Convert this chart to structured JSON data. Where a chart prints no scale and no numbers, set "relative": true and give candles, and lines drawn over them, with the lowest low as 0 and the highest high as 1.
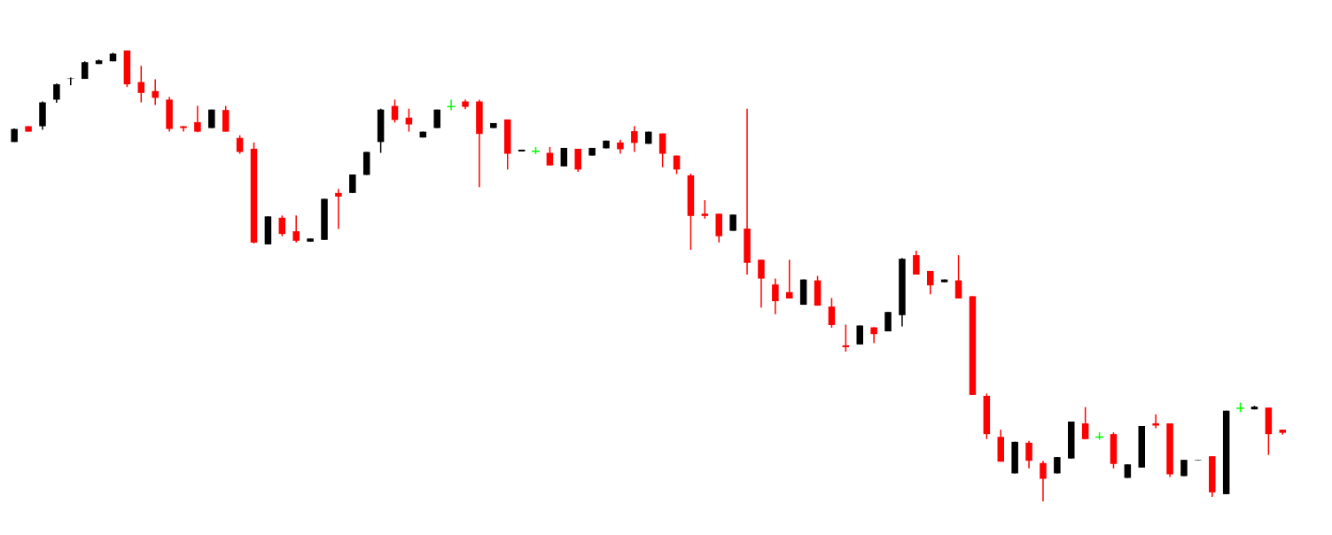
{
  "chart_data": {
    "type": "candlestick",
    "relative": true,
    "categories": [
      null,
      null,
      null,
      null,
      null,
      null,
      null,
      null,
      null,
      null,
      null,
      null,
      null,
      null,
      null,
      null,
      null,
      null,
      null,
      null,
      null,
      null,
      null,
      null,
      null,
      null,
      null,
      null,
      null,
      null,
      null,
      null,
      null,
      null,
      null,
      null,
      null,
      null,
      null,
      null,
      null,
      null,
      null,
      null,
      null,
      null,
      null,
      null,
      null,
      null,
      null,
      null,
      null,
      null,
      null,
      null,
      null,
      null,
      null,
      null,
      null,
      null,
      null,
      null,
      null,
      null,
      null,
      null,
      null,
      null,
      null,
      null,
      null,
      null,
      null,
      null,
      null,
      null,
      null,
      null,
      null,
      null,
      null,
      null,
      null,
      null,
      null,
      null,
      null,
      null,
      null
    ],
    "ohlc": [
      [
        0.797,
        0.827,
        0.797,
        0.826
      ],
      [
        0.832,
        0.832,
        0.82,
        0.82
      ],
      [
        0.832,
        0.887,
        0.824,
        0.885
      ],
      [
        0.891,
        0.927,
        0.884,
        0.925
      ],
      [
        0.937,
        0.94,
        0.923,
        0.938
      ],
      [
        0.937,
        0.976,
        0.937,
        0.974
      ],
      [
        0.97,
        0.98,
        0.97,
        0.978
      ],
      [
        0.976,
        0.995,
        0.976,
        0.993
      ],
      [
        1,
        1,
        0.919,
        0.925
      ],
      [
        0.93,
        0.966,
        0.885,
        0.906
      ],
      [
        0.91,
        0.936,
        0.879,
        0.895
      ],
      [
        0.891,
        0.897,
        0.82,
        0.826
      ],
      [
        0.832,
        0.832,
        0.82,
        0.828
      ],
      [
        0.841,
        0.877,
        0.819,
        0.82
      ],
      [
        0.828,
        0.869,
        0.828,
        0.869
      ],
      [
        0.868,
        0.877,
        0.82,
        0.82
      ],
      [
        0.806,
        0.812,
        0.771,
        0.775
      ],
      [
        0.782,
        0.796,
        0.572,
        0.574
      ],
      [
        0.57,
        0.632,
        0.57,
        0.632
      ],
      [
        0.629,
        0.634,
        0.588,
        0.593
      ],
      [
        0.599,
        0.634,
        0.574,
        0.578
      ],
      [
        0.576,
        0.583,
        0.576,
        0.583
      ],
      [
        0.58,
        0.671,
        0.58,
        0.671
      ],
      [
        0.684,
        0.693,
        0.604,
        0.676
      ],
      [
        0.684,
        0.725,
        0.684,
        0.725
      ],
      [
        0.724,
        0.775,
        0.724,
        0.775
      ],
      [
        0.797,
        0.871,
        0.773,
        0.869
      ],
      [
        0.877,
        0.891,
        0.84,
        0.846
      ],
      [
        0.851,
        0.871,
        0.82,
        0.836
      ],
      [
        0.807,
        0.82,
        0.807,
        0.82
      ],
      [
        0.828,
        0.869,
        0.828,
        0.869
      ],
      [
        0.877,
        0.891,
        0.868,
        0.877
      ],
      [
        0.887,
        0.891,
        0.87,
        0.875
      ],
      [
        0.887,
        0.891,
        0.697,
        0.815
      ],
      [
        0.828,
        0.839,
        0.828,
        0.839
      ],
      [
        0.847,
        0.847,
        0.736,
        0.771
      ],
      [
        0.776,
        0.78,
        0.776,
        0.78
      ],
      [
        0.778,
        0.786,
        0.77,
        0.778
      ],
      [
        0.773,
        0.786,
        0.745,
        0.745
      ],
      [
        0.743,
        0.784,
        0.743,
        0.784
      ],
      [
        0.782,
        0.782,
        0.731,
        0.736
      ],
      [
        0.767,
        0.784,
        0.767,
        0.784
      ],
      [
        0.783,
        0.8,
        0.783,
        0.8
      ],
      [
        0.796,
        0.802,
        0.771,
        0.781
      ],
      [
        0.821,
        0.832,
        0.775,
        0.795
      ],
      [
        0.793,
        0.82,
        0.793,
        0.82
      ],
      [
        0.816,
        0.816,
        0.741,
        0.771
      ],
      [
        0.767,
        0.767,
        0.726,
        0.736
      ],
      [
        0.723,
        0.727,
        0.558,
        0.633
      ],
      [
        0.638,
        0.668,
        0.627,
        0.633
      ],
      [
        0.638,
        0.638,
        0.574,
        0.588
      ],
      [
        0.6,
        0.636,
        0.6,
        0.636
      ],
      [
        0.605,
        0.871,
        0.503,
        0.529
      ],
      [
        0.536,
        0.536,
        0.43,
        0.494
      ],
      [
        0.481,
        0.494,
        0.415,
        0.444
      ],
      [
        0.464,
        0.536,
        0.45,
        0.45
      ],
      [
        0.436,
        0.492,
        0.436,
        0.492
      ],
      [
        0.49,
        0.5,
        0.434,
        0.434
      ],
      [
        0.432,
        0.451,
        0.385,
        0.391
      ],
      [
        0.346,
        0.392,
        0.332,
        0.342
      ],
      [
        0.348,
        0.39,
        0.348,
        0.39
      ],
      [
        0.386,
        0.386,
        0.351,
        0.371
      ],
      [
        0.377,
        0.42,
        0.377,
        0.42
      ],
      [
        0.413,
        0.54,
        0.388,
        0.538
      ],
      [
        0.546,
        0.556,
        0.503,
        0.503
      ],
      [
        0.511,
        0.511,
        0.459,
        0.479
      ],
      [
        0.486,
        0.492,
        0.486,
        0.492
      ],
      [
        0.49,
        0.546,
        0.45,
        0.45
      ],
      [
        0.455,
        0.455,
        0.236,
        0.236
      ],
      [
        0.234,
        0.239,
        0.138,
        0.149
      ],
      [
        0.143,
        0.159,
        0.088,
        0.088
      ],
      [
        0.062,
        0.132,
        0.062,
        0.132
      ],
      [
        0.13,
        0.134,
        0.073,
        0.09
      ],
      [
        0.085,
        0.09,
        0,
        0.05
      ],
      [
        0.062,
        0.098,
        0.062,
        0.098
      ],
      [
        0.095,
        0.177,
        0.095,
        0.177
      ],
      [
        0.173,
        0.209,
        0.138,
        0.138
      ],
      [
        0.144,
        0.153,
        0.137,
        0.144
      ],
      [
        0.149,
        0.153,
        0.073,
        0.083
      ],
      [
        0.052,
        0.082,
        0.052,
        0.082
      ],
      [
        0.075,
        0.167,
        0.075,
        0.167
      ],
      [
        0.173,
        0.193,
        0.162,
        0.168
      ],
      [
        0.173,
        0.173,
        0.054,
        0.06
      ],
      [
        0.056,
        0.092,
        0.056,
        0.092
      ],
      [
        0.091,
        0.092,
        0.091,
        0.092
      ],
      [
        0.1,
        0.1,
        0.01,
        0.02
      ],
      [
        0.016,
        0.201,
        0.016,
        0.201
      ],
      [
        0.208,
        0.219,
        0.198,
        0.208
      ],
      [
        0.204,
        0.212,
        0.204,
        0.21
      ],
      [
        0.208,
        0.208,
        0.103,
        0.149
      ],
      [
        0.159,
        0.159,
        0.148,
        0.152
      ]
    ],
    "colors": [
      "#000000",
      "#ff0000",
      "#000000",
      "#000000",
      "#000000",
      "#000000",
      "#000000",
      "#000000",
      "#ff0000",
      "#ff0000",
      "#ff0000",
      "#ff0000",
      "#ff0000",
      "#ff0000",
      "#000000",
      "#ff0000",
      "#ff0000",
      "#ff0000",
      "#000000",
      "#ff0000",
      "#ff0000",
      "#000000",
      "#000000",
      "#ff0000",
      "#000000",
      "#000000",
      "#000000",
      "#ff0000",
      "#ff0000",
      "#000000",
      "#000000",
      "#00ff00",
      "#ff0000",
      "#ff0000",
      "#000000",
      "#ff0000",
      "#000000",
      "#00ff00",
      "#ff0000",
      "#000000",
      "#ff0000",
      "#000000",
      "#000000",
      "#ff0000",
      "#ff0000",
      "#000000",
      "#ff0000",
      "#ff0000",
      "#ff0000",
      "#ff0000",
      "#ff0000",
      "#000000",
      "#ff0000",
      "#ff0000",
      "#ff0000",
      "#ff0000",
      "#000000",
      "#ff0000",
      "#ff0000",
      "#ff0000",
      "#000000",
      "#ff0000",
      "#000000",
      "#000000",
      "#ff0000",
      "#ff0000",
      "#000000",
      "#ff0000",
      "#ff0000",
      "#ff0000",
      "#ff0000",
      "#000000",
      "#ff0000",
      "#ff0000",
      "#000000",
      "#000000",
      "#ff0000",
      "#00ff00",
      "#ff0000",
      "#000000",
      "#000000",
      "#ff0000",
      "#ff0000",
      "#000000",
      "#000000",
      "#ff0000",
      "#000000",
      "#00ff00",
      "#000000",
      "#ff0000",
      "#ff0000"
    ]
  }
}
